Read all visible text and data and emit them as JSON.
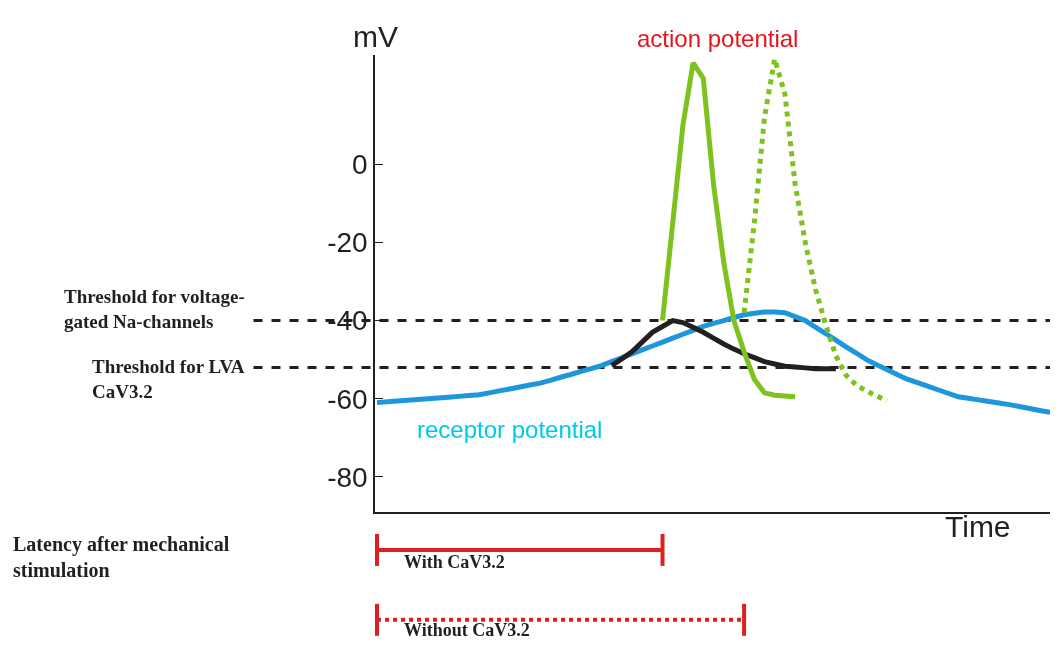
{
  "chart_data": {
    "type": "line",
    "categories": [
      null,
      null,
      null,
      null,
      null,
      null,
      null,
      null,
      null,
      null,
      null,
      null,
      null,
      null,
      null,
      null,
      null,
      null,
      null,
      null,
      null,
      null,
      null,
      null,
      null,
      null,
      null,
      null,
      null,
      null,
      null,
      null,
      null,
      null,
      null,
      null,
      null,
      null,
      null,
      null,
      null,
      null,
      null,
      null,
      null,
      null,
      null,
      null,
      null,
      null,
      null,
      null,
      null,
      null,
      null,
      null,
      null,
      null,
      null,
      null,
      null,
      null,
      null,
      null,
      null,
      null,
      null
    ],
    "series": [
      {
        "color": "#1e96dc",
        "line_style": "solid",
        "values": [
          -61,
          -60.8,
          -60.6,
          -60.4,
          -60.2,
          -60,
          -59.8,
          -59.6,
          -59.4,
          -59.2,
          -59,
          -58.5,
          -58,
          -57.5,
          -57,
          -56.5,
          -56,
          -55.3,
          -54.5,
          -53.8,
          -53,
          -52.3,
          -51.5,
          -50.5,
          -49.5,
          -48.5,
          -47.5,
          -46.5,
          -45.5,
          -44.5,
          -43.5,
          -42.5,
          -41.5,
          -40.7,
          -40,
          -39.2,
          -38.5,
          -38.1,
          -37.8,
          -37.8,
          -38,
          -39,
          -40,
          -41.7,
          -43.3,
          -45,
          -46.7,
          -48.3,
          -50,
          -51.3,
          -52.5,
          -53.8,
          -55,
          -55.9,
          -56.8,
          -57.7,
          -58.6,
          -59.5,
          -59.9,
          -60.3,
          -60.7,
          -61.1,
          -61.5,
          -62,
          -62.5,
          -63,
          -63.5
        ]
      },
      {
        "color": "#231f20",
        "line_style": "solid",
        "values": [
          null,
          null,
          null,
          null,
          null,
          null,
          null,
          null,
          null,
          null,
          null,
          null,
          null,
          null,
          null,
          null,
          null,
          null,
          null,
          null,
          null,
          null,
          null,
          -51.5,
          -49.8,
          -48,
          -45.5,
          -43,
          -41.5,
          -40,
          -40.5,
          -41.7,
          -43,
          -44.5,
          -46,
          -47.3,
          -48.5,
          -49.5,
          -50.5,
          -51.1,
          -51.7,
          -51.9,
          -52.1,
          -52.3,
          -52.3,
          -52.3,
          null,
          null,
          null,
          null,
          null,
          null,
          null,
          null,
          null,
          null,
          null,
          null,
          null,
          null,
          null,
          null,
          null,
          null,
          null,
          null,
          null
        ]
      },
      {
        "color": "#7dc21e",
        "line_style": "solid",
        "values": [
          null,
          null,
          null,
          null,
          null,
          null,
          null,
          null,
          null,
          null,
          null,
          null,
          null,
          null,
          null,
          null,
          null,
          null,
          null,
          null,
          null,
          null,
          null,
          null,
          null,
          null,
          null,
          null,
          -40,
          -15,
          10,
          26,
          22,
          -5,
          -25,
          -40,
          -48,
          -55,
          -58.5,
          -59.1,
          -59.3,
          -59.5,
          null,
          null,
          null,
          null,
          null,
          null,
          null,
          null,
          null,
          null,
          null,
          null,
          null,
          null,
          null,
          null,
          null,
          null,
          null,
          null,
          null,
          null,
          null,
          null,
          null
        ]
      },
      {
        "color": "#7dc21e",
        "line_style": "dotted",
        "values": [
          null,
          null,
          null,
          null,
          null,
          null,
          null,
          null,
          null,
          null,
          null,
          null,
          null,
          null,
          null,
          null,
          null,
          null,
          null,
          null,
          null,
          null,
          null,
          null,
          null,
          null,
          null,
          null,
          null,
          null,
          null,
          null,
          null,
          null,
          null,
          null,
          -38,
          -15,
          12,
          27,
          18,
          -5,
          -20,
          -32,
          -41,
          -49,
          -54,
          -56.5,
          -58,
          -59.3,
          -60.5,
          null,
          null,
          null,
          null,
          null,
          null,
          null,
          null,
          null,
          null,
          null,
          null,
          null,
          null,
          null,
          null
        ]
      }
    ],
    "ylabel": "mV",
    "ylim": [
      -89,
      28
    ],
    "yticks": [
      0,
      -20,
      -40,
      -60,
      -80
    ],
    "ref_lines": [
      {
        "axis": "y",
        "value": -40,
        "label": "Threshold for voltage-gated Na-channels",
        "color": "#231f20",
        "line_style": "dashed"
      },
      {
        "axis": "y",
        "value": -52,
        "label": "Threshold for LVA CaV3.2",
        "color": "#231f20",
        "line_style": "dashed"
      }
    ],
    "annotations": [
      "action potential",
      "receptor potential",
      "Latency after mechanical stimulation",
      "With CaV3.2",
      "Without CaV3.2",
      "Time"
    ],
    "grid": false,
    "marker": "none"
  }
}
